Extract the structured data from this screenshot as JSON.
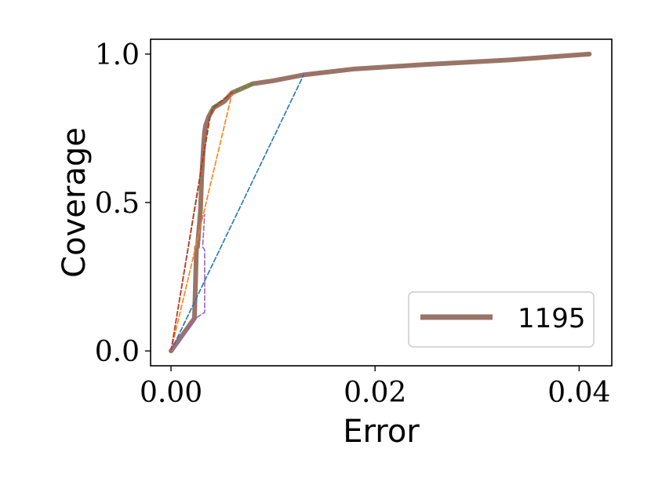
{
  "chart_data": {
    "type": "line",
    "title": "",
    "xlabel": "Error",
    "ylabel": "Coverage",
    "xlim": [
      -0.002,
      0.0432
    ],
    "ylim": [
      -0.05,
      1.05
    ],
    "x_ticks": [
      0.0,
      0.02,
      0.04
    ],
    "x_tick_labels": [
      "0.00",
      "0.02",
      "0.04"
    ],
    "y_ticks": [
      0.0,
      0.5,
      1.0
    ],
    "y_tick_labels": [
      "0.0",
      "0.5",
      "1.0"
    ],
    "grid": false,
    "legend_position": "lower-right",
    "series": [
      {
        "name": "1195",
        "style": "solid",
        "color": "#9a7467",
        "x": [
          0.0,
          0.0023,
          0.0025,
          0.0026,
          0.0029,
          0.003,
          0.0031,
          0.0032,
          0.0033,
          0.0034,
          0.0037,
          0.0042,
          0.0052,
          0.006,
          0.008,
          0.01,
          0.013,
          0.018,
          0.025,
          0.033,
          0.041
        ],
        "y": [
          0.0,
          0.11,
          0.35,
          0.35,
          0.48,
          0.58,
          0.64,
          0.7,
          0.74,
          0.76,
          0.79,
          0.82,
          0.84,
          0.87,
          0.9,
          0.91,
          0.93,
          0.95,
          0.965,
          0.98,
          1.0
        ]
      },
      {
        "style": "dashed",
        "color": "#1f77b4",
        "x": [
          0.0,
          0.013
        ],
        "y": [
          0.0,
          0.93
        ]
      },
      {
        "style": "dashed",
        "color": "#ff7f0e",
        "x": [
          0.0,
          0.006,
          0.008
        ],
        "y": [
          0.0,
          0.87,
          0.9
        ]
      },
      {
        "style": "dashed",
        "color": "#2ca02c",
        "x": [
          0.0,
          0.004,
          0.006,
          0.008
        ],
        "y": [
          0.0,
          0.82,
          0.87,
          0.9
        ]
      },
      {
        "style": "dashed",
        "color": "#d62728",
        "x": [
          0.0,
          0.0038,
          0.0042,
          0.006
        ],
        "y": [
          0.0,
          0.79,
          0.82,
          0.87
        ]
      },
      {
        "style": "dashed",
        "color": "#9467bd",
        "x": [
          0.0,
          0.0024,
          0.0033,
          0.0033,
          0.0031,
          0.0033
        ],
        "y": [
          0.0,
          0.11,
          0.13,
          0.34,
          0.35,
          0.46
        ]
      }
    ]
  }
}
